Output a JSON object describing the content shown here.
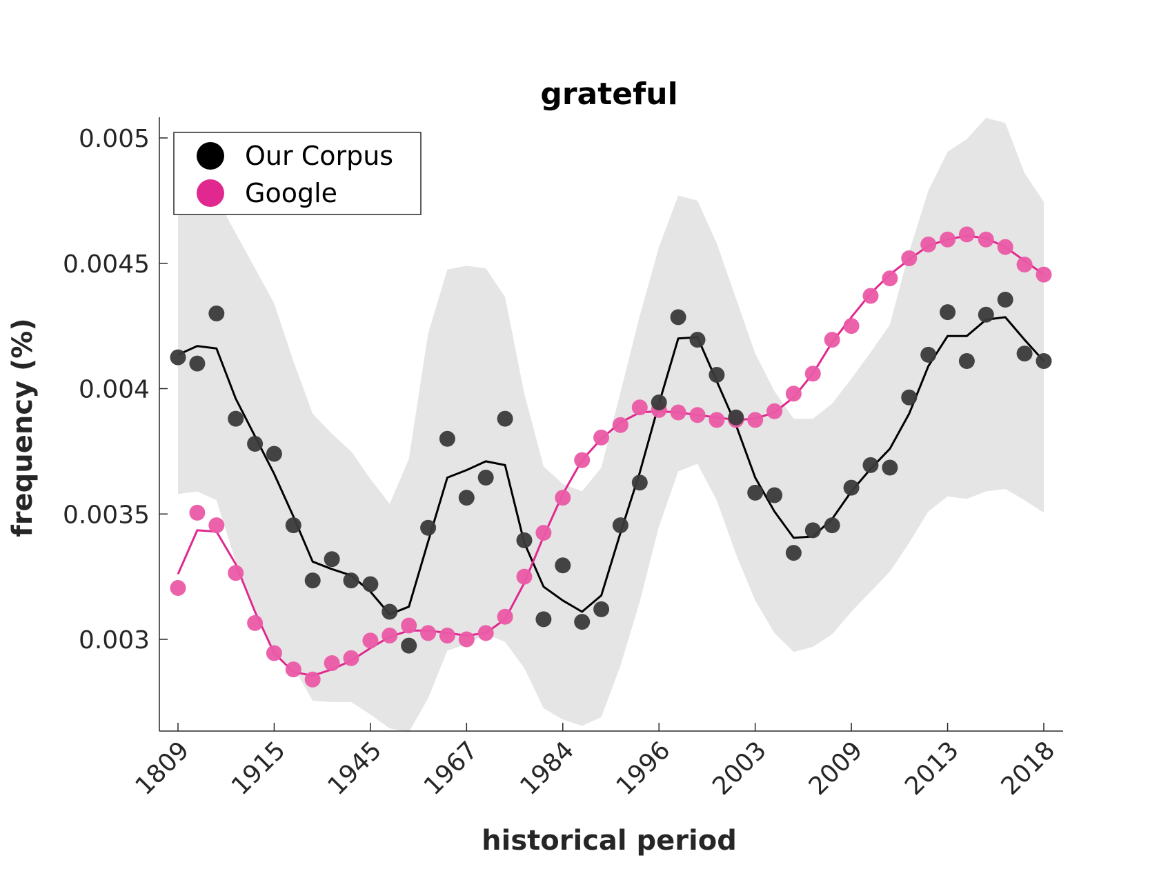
{
  "chart_data": {
    "type": "scatter",
    "title": "grateful",
    "xlabel": "historical period",
    "ylabel": "frequency (%)",
    "xtick_labels": [
      "1809",
      "1915",
      "1945",
      "1967",
      "1984",
      "1996",
      "2003",
      "2009",
      "2013",
      "2018"
    ],
    "ylim": [
      0.00263,
      0.00508
    ],
    "yticks": [
      0.003,
      0.0035,
      0.004,
      0.0045,
      0.005
    ],
    "ytick_labels": [
      "0.003",
      "0.0035",
      "0.004",
      "0.0045",
      "0.005"
    ],
    "grid": false,
    "legend": {
      "position": "top-left",
      "entries": [
        "Our Corpus",
        "Google"
      ]
    },
    "colors": {
      "corpus": "#000000",
      "corpus_points": "#3a3a3a",
      "google": "#e0288f",
      "google_points": "#ea5aa6",
      "band": "#e5e5e5",
      "axis": "#262626"
    },
    "series": [
      {
        "name": "Our Corpus",
        "points": [
          0.004125,
          0.0041,
          0.0043,
          0.00388,
          0.00378,
          0.00374,
          0.003455,
          0.003235,
          0.00332,
          0.003235,
          0.00322,
          0.00311,
          0.002975,
          0.003445,
          0.0038,
          0.003565,
          0.003645,
          0.00388,
          0.003395,
          0.00308,
          0.003295,
          0.00307,
          0.00312,
          0.003455,
          0.003625,
          0.003945,
          0.004285,
          0.004195,
          0.004055,
          0.003885,
          0.003585,
          0.003575,
          0.003345,
          0.003435,
          0.003455,
          0.003605,
          0.003695,
          0.003685,
          0.003965,
          0.004135,
          0.004305,
          0.00411,
          0.004295,
          0.004355,
          0.00414,
          0.00411
        ],
        "smooth": [
          0.004135,
          0.00417,
          0.00416,
          0.00396,
          0.00381,
          0.00366,
          0.00349,
          0.00331,
          0.00328,
          0.003255,
          0.00319,
          0.0031,
          0.00313,
          0.00339,
          0.003645,
          0.003675,
          0.00371,
          0.003695,
          0.003385,
          0.00321,
          0.003155,
          0.00311,
          0.003175,
          0.003425,
          0.003665,
          0.00394,
          0.0042,
          0.004205,
          0.00403,
          0.003855,
          0.003645,
          0.00351,
          0.003405,
          0.00341,
          0.00348,
          0.00359,
          0.00368,
          0.00376,
          0.0039,
          0.00409,
          0.00421,
          0.00421,
          0.004275,
          0.004285,
          0.004195,
          0.00411
        ],
        "band_upper": [
          0.00478,
          0.00477,
          0.00476,
          0.00462,
          0.00448,
          0.00434,
          0.00411,
          0.0039,
          0.00382,
          0.00375,
          0.00364,
          0.00354,
          0.00372,
          0.00422,
          0.004475,
          0.00449,
          0.00448,
          0.004365,
          0.00398,
          0.00369,
          0.00362,
          0.00359,
          0.003685,
          0.003985,
          0.00429,
          0.004565,
          0.00477,
          0.00475,
          0.00458,
          0.00436,
          0.00414,
          0.00399,
          0.00388,
          0.00388,
          0.00394,
          0.00404,
          0.004145,
          0.004255,
          0.004545,
          0.00479,
          0.004945,
          0.004995,
          0.00508,
          0.00506,
          0.00486,
          0.004745
        ],
        "band_lower": [
          0.00358,
          0.00359,
          0.003555,
          0.00331,
          0.00311,
          0.00293,
          0.00289,
          0.002755,
          0.00275,
          0.00275,
          0.0027,
          0.002645,
          0.00263,
          0.002765,
          0.002955,
          0.00298,
          0.00302,
          0.00299,
          0.002885,
          0.002725,
          0.00268,
          0.002655,
          0.00269,
          0.002895,
          0.00315,
          0.00345,
          0.00367,
          0.0037,
          0.003555,
          0.00334,
          0.003155,
          0.003025,
          0.00295,
          0.00297,
          0.00302,
          0.00311,
          0.00319,
          0.00327,
          0.003385,
          0.00351,
          0.00357,
          0.00356,
          0.00359,
          0.0036,
          0.003555,
          0.003505
        ]
      },
      {
        "name": "Google",
        "points": [
          0.003205,
          0.003505,
          0.003455,
          0.003265,
          0.003065,
          0.002945,
          0.00288,
          0.00284,
          0.002905,
          0.002925,
          0.002995,
          0.003015,
          0.003055,
          0.003025,
          0.003015,
          0.003,
          0.003025,
          0.00309,
          0.00325,
          0.003425,
          0.003565,
          0.003715,
          0.003805,
          0.003855,
          0.003925,
          0.003915,
          0.003905,
          0.003895,
          0.003875,
          0.003875,
          0.003875,
          0.00391,
          0.00398,
          0.00406,
          0.004195,
          0.00425,
          0.00437,
          0.00444,
          0.00452,
          0.004575,
          0.004595,
          0.004615,
          0.004595,
          0.004565,
          0.004495,
          0.004455
        ],
        "smooth": [
          0.00326,
          0.003435,
          0.00343,
          0.0033,
          0.00311,
          0.002945,
          0.00287,
          0.002855,
          0.00288,
          0.002915,
          0.002965,
          0.00301,
          0.003035,
          0.003035,
          0.003025,
          0.003015,
          0.003025,
          0.00308,
          0.003225,
          0.00341,
          0.00358,
          0.003715,
          0.0038,
          0.003865,
          0.003905,
          0.00391,
          0.003905,
          0.003895,
          0.003885,
          0.003875,
          0.00388,
          0.003905,
          0.003965,
          0.00406,
          0.004185,
          0.004285,
          0.00438,
          0.004455,
          0.004515,
          0.00457,
          0.004595,
          0.00461,
          0.0046,
          0.004565,
          0.00451,
          0.004455
        ]
      }
    ]
  }
}
